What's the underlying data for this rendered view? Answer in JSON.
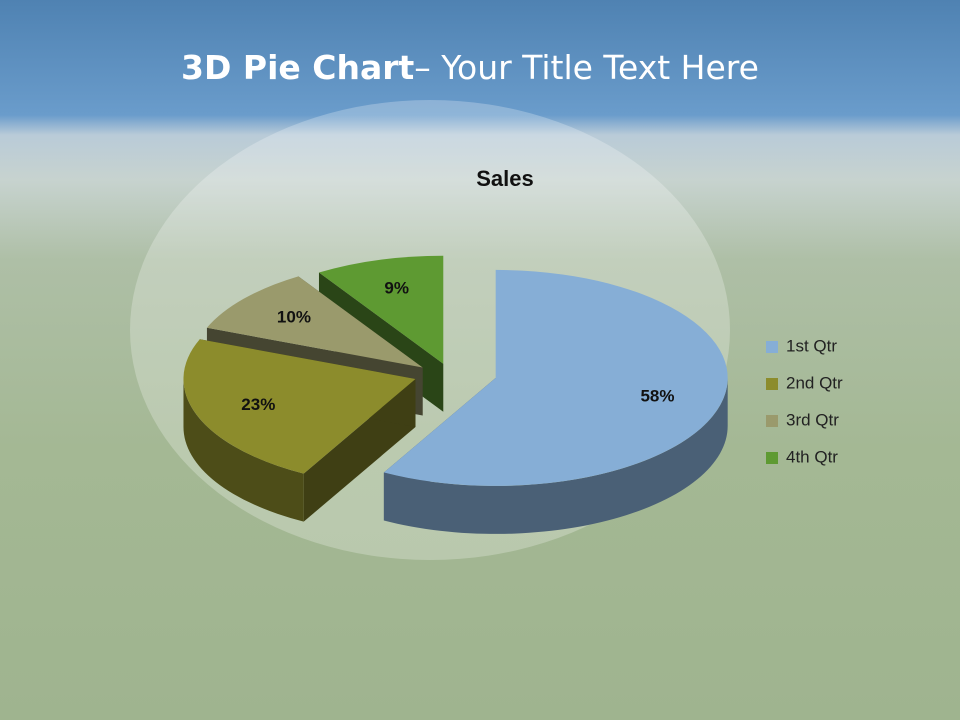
{
  "header": {
    "title_bold": "3D Pie Chart",
    "title_rest": "– Your Title Text Here"
  },
  "chart_data": {
    "type": "pie3d",
    "title": "Sales",
    "categories": [
      "1st Qtr",
      "2nd Qtr",
      "3rd Qtr",
      "4th Qtr"
    ],
    "values": [
      58,
      23,
      10,
      9
    ],
    "value_labels": [
      "58%",
      "23%",
      "10%",
      "9%"
    ],
    "colors": [
      "#86aed6",
      "#8c8c2c",
      "#9a9a6c",
      "#5e9a32"
    ],
    "legend": "right"
  }
}
